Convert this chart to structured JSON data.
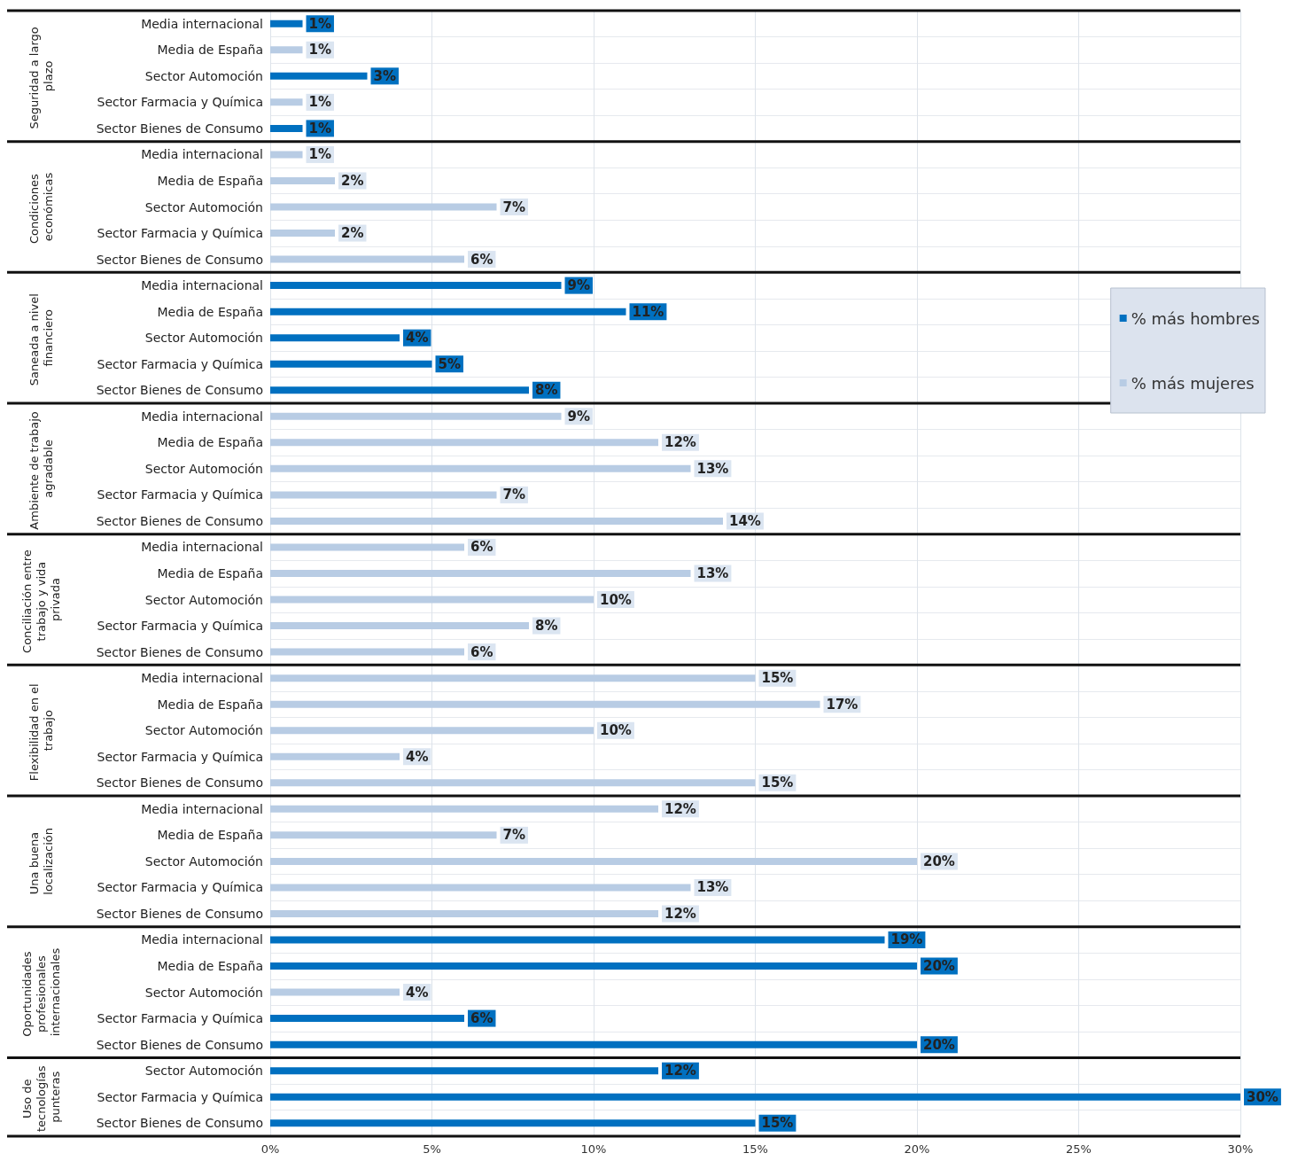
{
  "chart_data": {
    "type": "bar",
    "orientation": "horizontal",
    "categories": [
      "Media internacional",
      "Media de España",
      "Sector Automoción",
      "Sector Farmacia y Química",
      "Sector Bienes de Consumo",
      "Media internacional",
      "Media de España",
      "Sector Automoción",
      "Sector Farmacia y Química",
      "Sector Bienes de Consumo",
      "Media internacional",
      "Media de España",
      "Sector Automoción",
      "Sector Farmacia y Química",
      "Sector Bienes de Consumo",
      "Media internacional",
      "Media de España",
      "Sector Automoción",
      "Sector Farmacia y Química",
      "Sector Bienes de Consumo",
      "Media internacional",
      "Media de España",
      "Sector Automoción",
      "Sector Farmacia y Química",
      "Sector Bienes de Consumo",
      "Media internacional",
      "Media de España",
      "Sector Automoción",
      "Sector Farmacia y Química",
      "Sector Bienes de Consumo",
      "Media internacional",
      "Media de España",
      "Sector Automoción",
      "Sector Farmacia y Química",
      "Sector Bienes de Consumo",
      "Media internacional",
      "Media de España",
      "Sector Automoción",
      "Sector Farmacia y Química",
      "Sector Bienes de Consumo",
      "Sector Automoción",
      "Sector Farmacia y Química",
      "Sector Bienes de Consumo"
    ],
    "series": [
      {
        "name": "% más hombres",
        "color": "#0070c0",
        "values": [
          1,
          null,
          3,
          null,
          1,
          null,
          null,
          null,
          null,
          null,
          9,
          11,
          4,
          5,
          8,
          null,
          null,
          null,
          null,
          null,
          null,
          null,
          null,
          null,
          null,
          null,
          null,
          null,
          null,
          null,
          null,
          null,
          null,
          null,
          null,
          19,
          20,
          null,
          6,
          20,
          12,
          30,
          15
        ],
        "value_labels": [
          "1%",
          null,
          "3%",
          null,
          "1%",
          null,
          null,
          null,
          null,
          null,
          "9%",
          "11%",
          "4%",
          "5%",
          "8%",
          null,
          null,
          null,
          null,
          null,
          null,
          null,
          null,
          null,
          null,
          null,
          null,
          null,
          null,
          null,
          null,
          null,
          null,
          null,
          null,
          "19%",
          "20%",
          null,
          "6%",
          "20%",
          "12%",
          "30%",
          "15%"
        ]
      },
      {
        "name": "% más mujeres",
        "color": "#b8cce4",
        "values": [
          null,
          1,
          null,
          1,
          null,
          1,
          2,
          7,
          2,
          6,
          null,
          null,
          null,
          null,
          null,
          9,
          12,
          13,
          7,
          14,
          6,
          13,
          10,
          8,
          6,
          15,
          17,
          10,
          4,
          15,
          12,
          7,
          20,
          13,
          12,
          null,
          null,
          4,
          null,
          null,
          null,
          null,
          null
        ],
        "value_labels": [
          null,
          "1%",
          null,
          "1%",
          null,
          "1%",
          "2%",
          "7%",
          "2%",
          "6%",
          null,
          null,
          null,
          null,
          null,
          "9%",
          "12%",
          "13%",
          "7%",
          "14%",
          "6%",
          "13%",
          "10%",
          "8%",
          "6%",
          "15%",
          "17%",
          "10%",
          "4%",
          "15%",
          "12%",
          "7%",
          "20%",
          "13%",
          "12%",
          null,
          null,
          "4%",
          null,
          null,
          null,
          null,
          null
        ]
      }
    ],
    "xlim": [
      0,
      30
    ],
    "xticks": [
      {
        "value": 0,
        "label": "0%"
      },
      {
        "value": 5,
        "label": "5%"
      },
      {
        "value": 10,
        "label": "10%"
      },
      {
        "value": 15,
        "label": "15%"
      },
      {
        "value": 20,
        "label": "20%"
      },
      {
        "value": 25,
        "label": "25%"
      },
      {
        "value": 30,
        "label": "30%"
      }
    ],
    "annotations": [
      "Seguridad a largo plazo",
      "Condiciones económicas",
      "Saneada a nivel financiero",
      "Ambiente de trabajo agradable",
      "Conciliación entre trabajo y vida privada",
      "Flexibilidad en el trabajo",
      "Una buena localización",
      "Oportunidades profesionales internacionales",
      "Uso de tecnologías punteras"
    ],
    "grid": true,
    "legend": "right"
  }
}
